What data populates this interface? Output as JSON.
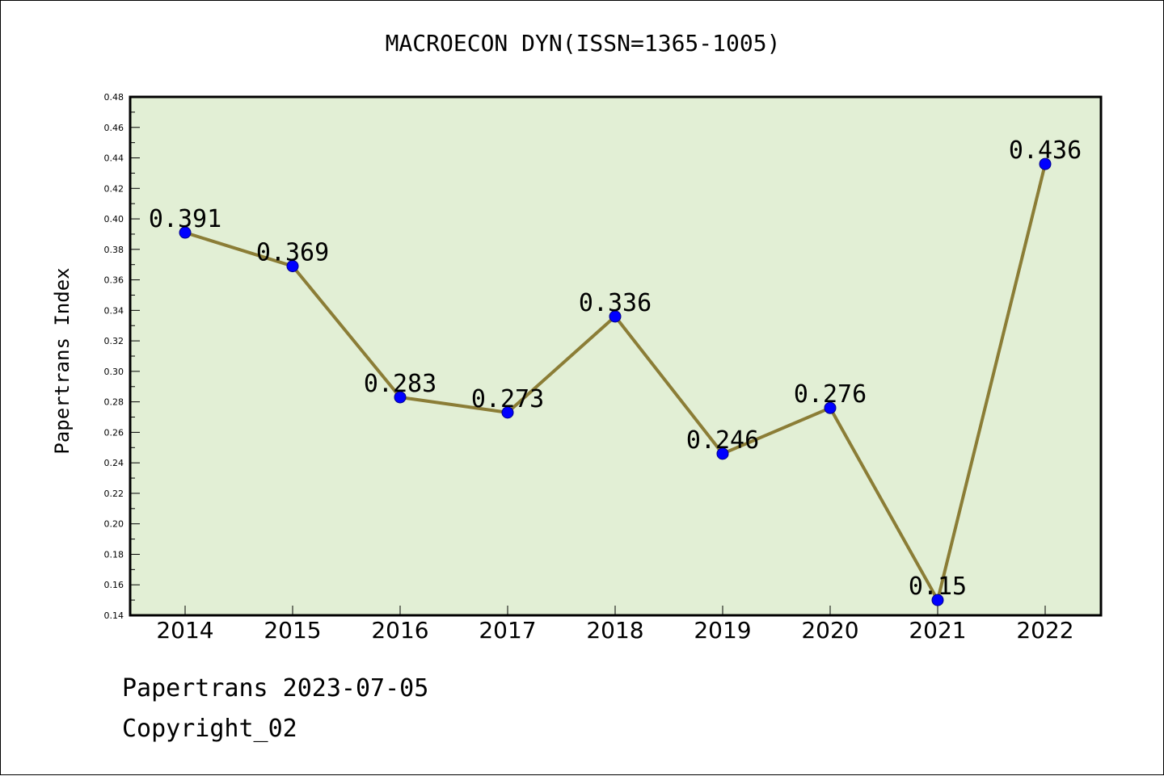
{
  "chart_data": {
    "type": "line",
    "title": "MACROECON DYN(ISSN=1365-1005)",
    "xlabel": "",
    "ylabel": "Papertrans Index",
    "categories": [
      "2014",
      "2015",
      "2016",
      "2017",
      "2018",
      "2019",
      "2020",
      "2021",
      "2022"
    ],
    "values": [
      0.391,
      0.369,
      0.283,
      0.273,
      0.336,
      0.246,
      0.276,
      0.15,
      0.436
    ],
    "data_labels": [
      "0.391",
      "0.369",
      "0.283",
      "0.273",
      "0.336",
      "0.246",
      "0.276",
      "0.15",
      "0.436"
    ],
    "ylim": [
      0.14,
      0.48
    ],
    "yticks": [
      "0.14",
      "0.16",
      "0.18",
      "0.20",
      "0.22",
      "0.24",
      "0.26",
      "0.28",
      "0.30",
      "0.32",
      "0.34",
      "0.36",
      "0.38",
      "0.40",
      "0.42",
      "0.44",
      "0.46",
      "0.48"
    ],
    "grid": false,
    "colors": {
      "plot_background": "#e2efd5",
      "line": "#8b7d36",
      "marker": "#0000ff"
    }
  },
  "footer": {
    "source": "Papertrans 2023-07-05",
    "copyright": "Copyright_02"
  }
}
